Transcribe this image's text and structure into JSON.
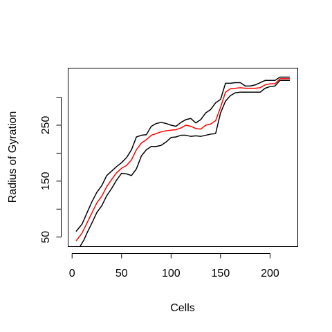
{
  "chart_data": {
    "type": "line",
    "xlabel": "Cells",
    "ylabel": "Radius of Gyration",
    "xlim": [
      -4,
      228
    ],
    "ylim": [
      33,
      352
    ],
    "xticks": [
      0,
      50,
      100,
      150,
      200
    ],
    "yticks_labeled": [
      50,
      150,
      250
    ],
    "yticks_all": [
      50,
      100,
      150,
      200,
      250,
      300
    ],
    "grid": false,
    "legend": "none",
    "series": [
      {
        "color": "#ff0000",
        "x": [
          4,
          10,
          15,
          20,
          25,
          30,
          35,
          40,
          45,
          50,
          55,
          60,
          65,
          70,
          75,
          80,
          85,
          90,
          95,
          100,
          105,
          110,
          115,
          120,
          125,
          130,
          135,
          140,
          145,
          150,
          155,
          160,
          165,
          170,
          175,
          180,
          185,
          190,
          195,
          200,
          205,
          210,
          215,
          220
        ],
        "values": [
          43,
          57,
          75,
          93,
          111,
          123,
          140,
          153,
          165,
          173,
          178,
          188,
          206,
          218,
          224,
          232,
          235,
          238,
          240,
          241,
          242,
          245,
          250,
          248,
          244,
          243,
          250,
          252,
          258,
          282,
          309,
          315,
          316,
          317,
          316,
          316,
          316,
          317,
          322,
          324,
          324,
          333,
          333,
          333
        ]
      },
      {
        "color": "#000000",
        "x": [
          4,
          10,
          15,
          20,
          25,
          30,
          35,
          40,
          45,
          50,
          55,
          60,
          65,
          70,
          75,
          80,
          85,
          90,
          95,
          100,
          105,
          110,
          115,
          120,
          125,
          130,
          135,
          140,
          145,
          150,
          155,
          160,
          165,
          170,
          175,
          180,
          185,
          190,
          195,
          200,
          205,
          210,
          215,
          220
        ],
        "values": [
          60,
          73,
          93,
          113,
          130,
          142,
          160,
          168,
          176,
          183,
          192,
          206,
          229,
          232,
          233,
          248,
          253,
          255,
          253,
          250,
          248,
          255,
          260,
          262,
          254,
          260,
          272,
          278,
          290,
          296,
          325,
          325,
          326,
          326,
          320,
          320,
          322,
          326,
          330,
          330,
          330,
          336,
          336,
          336
        ]
      },
      {
        "color": "#000000",
        "x": [
          8,
          12,
          15,
          20,
          25,
          30,
          35,
          40,
          45,
          50,
          55,
          60,
          65,
          70,
          75,
          80,
          85,
          90,
          95,
          100,
          105,
          110,
          115,
          120,
          125,
          130,
          135,
          140,
          145,
          150,
          155,
          160,
          165,
          170,
          175,
          180,
          185,
          190,
          195,
          200,
          205,
          210,
          215,
          220
        ],
        "values": [
          33,
          45,
          57,
          75,
          94,
          106,
          124,
          137,
          152,
          164,
          163,
          160,
          172,
          195,
          206,
          212,
          212,
          214,
          220,
          228,
          229,
          232,
          232,
          230,
          231,
          230,
          232,
          234,
          235,
          272,
          293,
          303,
          308,
          309,
          309,
          309,
          309,
          309,
          316,
          319,
          320,
          330,
          330,
          330
        ]
      }
    ]
  }
}
